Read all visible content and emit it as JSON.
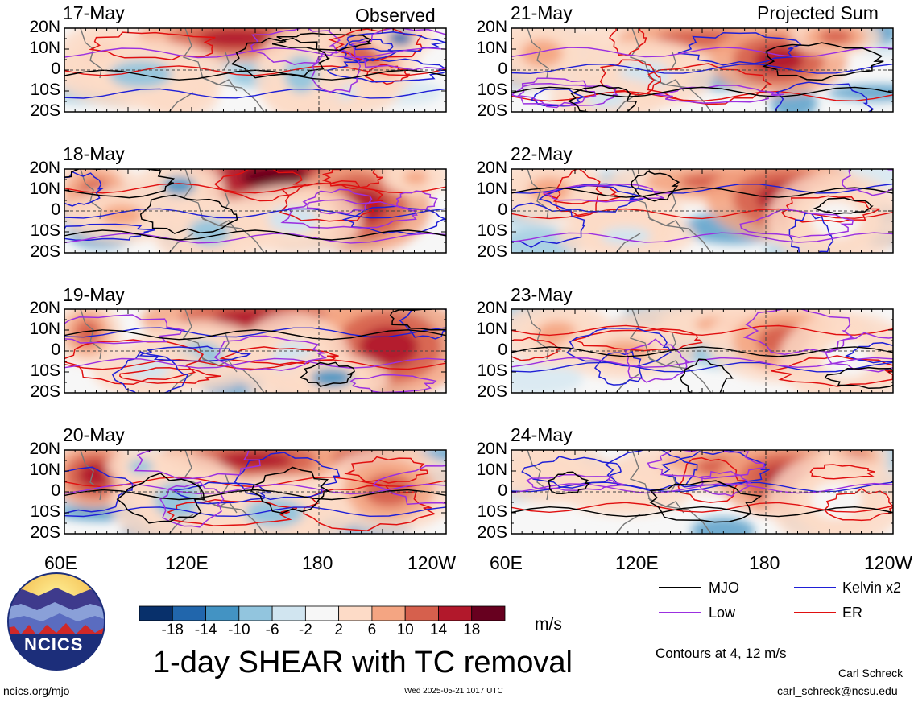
{
  "chart_data": {
    "type": "heatmap",
    "title": "1-day SHEAR with TC removal",
    "units": "m/s",
    "colorbar": {
      "ticks": [
        "-18",
        "-14",
        "-10",
        "-6",
        "-2",
        "2",
        "6",
        "10",
        "14",
        "18"
      ],
      "colors": [
        "#08306b",
        "#2166ac",
        "#4393c3",
        "#92c5de",
        "#d1e5f0",
        "#f7f7f7",
        "#fddbc7",
        "#f4a582",
        "#d6604d",
        "#b2182b",
        "#67001f"
      ]
    },
    "contour_note": "Contours at 4, 12 m/s",
    "legend": [
      {
        "name": "MJO",
        "color": "#000000"
      },
      {
        "name": "Kelvin x2",
        "color": "#1f1fd6"
      },
      {
        "name": "Low",
        "color": "#9b30e0"
      },
      {
        "name": "ER",
        "color": "#e01010"
      }
    ],
    "lat_ticks": [
      "20N",
      "10N",
      "0",
      "10S",
      "20S"
    ],
    "lon_ticks": [
      "60E",
      "120E",
      "180",
      "120W",
      "60E",
      "120E",
      "180",
      "120W"
    ],
    "columns": [
      "Observed",
      "Projected Sum"
    ],
    "observed_dates": [
      "17-May",
      "18-May",
      "19-May",
      "20-May"
    ],
    "projected_dates": [
      "21-May",
      "22-May",
      "23-May",
      "24-May"
    ]
  },
  "footer": {
    "site": "ncics.org/mjo",
    "timestamp": "Wed 2025-05-21 1017 UTC",
    "author": "Carl Schreck",
    "email": "carl_schreck@ncsu.edu",
    "logo_text": "NCICS"
  }
}
